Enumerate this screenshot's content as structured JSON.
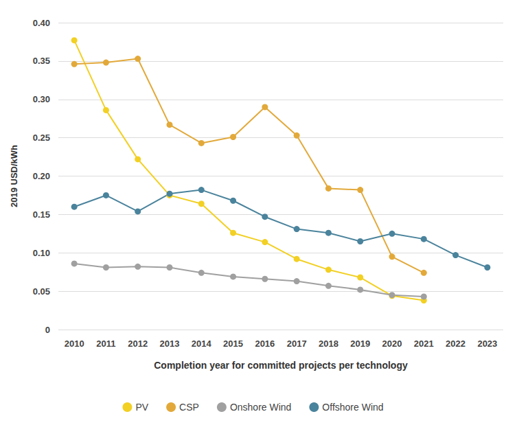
{
  "chart_data": {
    "type": "line",
    "x_label": "Completion year for committed projects per technology",
    "y_label": "2019 USD/kWh",
    "categories": [
      "2010",
      "2011",
      "2012",
      "2013",
      "2014",
      "2015",
      "2016",
      "2017",
      "2018",
      "2019",
      "2020",
      "2021",
      "2022",
      "2023"
    ],
    "series": [
      {
        "name": "PV",
        "color": "#f2d024",
        "values": [
          0.377,
          0.286,
          0.222,
          0.175,
          0.164,
          0.126,
          0.114,
          0.092,
          0.078,
          0.068,
          0.044,
          0.038,
          null,
          null
        ]
      },
      {
        "name": "CSP",
        "color": "#e2a93a",
        "values": [
          0.346,
          0.348,
          0.353,
          0.267,
          0.243,
          0.251,
          0.29,
          0.253,
          0.184,
          0.182,
          0.095,
          0.074,
          null,
          null
        ]
      },
      {
        "name": "Onshore Wind",
        "color": "#a0a0a0",
        "values": [
          0.086,
          0.081,
          0.082,
          0.081,
          0.074,
          0.069,
          0.066,
          0.063,
          0.057,
          0.052,
          0.045,
          0.043,
          null,
          null
        ]
      },
      {
        "name": "Offshore Wind",
        "color": "#4a839c",
        "values": [
          0.16,
          0.175,
          0.154,
          0.177,
          0.182,
          0.168,
          0.147,
          0.131,
          0.126,
          0.115,
          0.125,
          0.118,
          0.097,
          0.081
        ]
      }
    ],
    "ylim": [
      0,
      0.4
    ],
    "yticks": [
      0,
      0.05,
      {
        "value": 0.1,
        "label": "0.10"
      },
      0.15,
      {
        "value": 0.2,
        "label": "0.20"
      },
      0.25,
      {
        "value": 0.3,
        "label": "0.30"
      },
      0.35,
      {
        "value": 0.4,
        "label": "0.40"
      }
    ],
    "grid": true,
    "legend": "bottom",
    "marker": "circle"
  }
}
